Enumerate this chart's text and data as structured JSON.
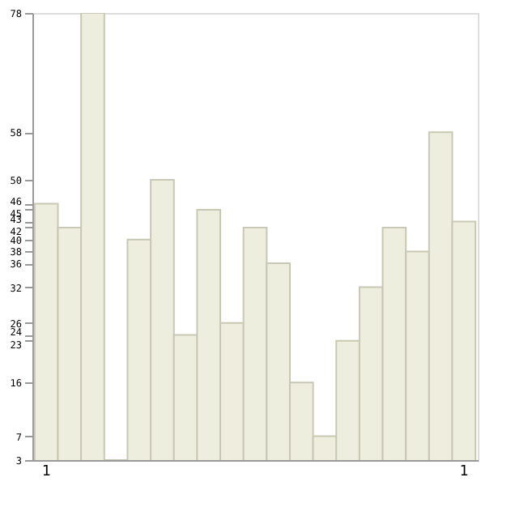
{
  "chart_data": {
    "type": "bar",
    "categories": [
      "1",
      null,
      null,
      null,
      null,
      null,
      null,
      null,
      null,
      null,
      null,
      null,
      null,
      null,
      null,
      null,
      null,
      null,
      "1"
    ],
    "values": [
      46,
      42,
      78,
      3,
      40,
      50,
      24,
      45,
      26,
      42,
      36,
      16,
      7,
      23,
      32,
      42,
      38,
      58,
      43
    ],
    "color": "#eeeedf",
    "ylim": [
      3,
      78
    ],
    "yticks": [
      3,
      7,
      16,
      23,
      24,
      26,
      32,
      36,
      38,
      40,
      42,
      43,
      45,
      46,
      50,
      58,
      78
    ],
    "grid": false
  }
}
